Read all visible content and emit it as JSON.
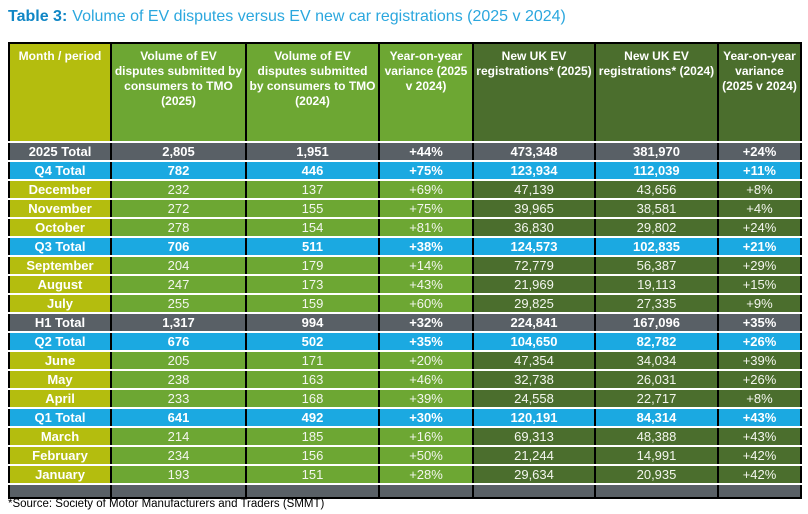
{
  "title": {
    "prefix": "Table 3:",
    "rest": "Volume of EV disputes versus EV new car registrations (2025 v 2024)"
  },
  "colors": {
    "title_prefix": "#0f86c5",
    "title_rest": "#2ba7de",
    "yellow_green": "#b4bd0e",
    "bright_green": "#6da733",
    "dark_green": "#4b6e2d",
    "cyan": "#1ba9e1",
    "gray": "#596066",
    "row_separator": "#ffffff",
    "grid_border": "#000000"
  },
  "table": {
    "columns": [
      {
        "key": "month-period",
        "label": "Month / period",
        "tone": "yellow"
      },
      {
        "key": "disputes-2025",
        "label": "Volume of EV disputes submitted by consumers to TMO (2025)",
        "tone": "bright"
      },
      {
        "key": "disputes-2024",
        "label": "Volume of EV disputes submitted by consumers to TMO (2024)",
        "tone": "bright"
      },
      {
        "key": "disputes-variance",
        "label": "Year-on-year variance (2025 v 2024)",
        "tone": "bright"
      },
      {
        "key": "registrations-2025",
        "label": "New UK EV registrations* (2025)",
        "tone": "dark"
      },
      {
        "key": "registrations-2024",
        "label": "New UK EV registrations* (2024)",
        "tone": "dark"
      },
      {
        "key": "registrations-variance",
        "label": "Year-on-year variance (2025 v 2024)",
        "tone": "dark"
      }
    ],
    "rows": [
      {
        "label": "2025 Total",
        "type": "grand",
        "values": [
          "2,805",
          "1,951",
          "+44%",
          "473,348",
          "381,970",
          "+24%"
        ]
      },
      {
        "label": "Q4 Total",
        "type": "quarter",
        "values": [
          "782",
          "446",
          "+75%",
          "123,934",
          "112,039",
          "+11%"
        ]
      },
      {
        "label": "December",
        "type": "month",
        "values": [
          "232",
          "137",
          "+69%",
          "47,139",
          "43,656",
          "+8%"
        ]
      },
      {
        "label": "November",
        "type": "month",
        "values": [
          "272",
          "155",
          "+75%",
          "39,965",
          "38,581",
          "+4%"
        ]
      },
      {
        "label": "October",
        "type": "month",
        "values": [
          "278",
          "154",
          "+81%",
          "36,830",
          "29,802",
          "+24%"
        ]
      },
      {
        "label": "Q3 Total",
        "type": "quarter",
        "values": [
          "706",
          "511",
          "+38%",
          "124,573",
          "102,835",
          "+21%"
        ]
      },
      {
        "label": "September",
        "type": "month",
        "values": [
          "204",
          "179",
          "+14%",
          "72,779",
          "56,387",
          "+29%"
        ]
      },
      {
        "label": "August",
        "type": "month",
        "values": [
          "247",
          "173",
          "+43%",
          "21,969",
          "19,113",
          "+15%"
        ]
      },
      {
        "label": "July",
        "type": "month",
        "values": [
          "255",
          "159",
          "+60%",
          "29,825",
          "27,335",
          "+9%"
        ]
      },
      {
        "label": "H1 Total",
        "type": "grand",
        "values": [
          "1,317",
          "994",
          "+32%",
          "224,841",
          "167,096",
          "+35%"
        ]
      },
      {
        "label": "Q2 Total",
        "type": "quarter",
        "values": [
          "676",
          "502",
          "+35%",
          "104,650",
          "82,782",
          "+26%"
        ]
      },
      {
        "label": "June",
        "type": "month",
        "values": [
          "205",
          "171",
          "+20%",
          "47,354",
          "34,034",
          "+39%"
        ]
      },
      {
        "label": "May",
        "type": "month",
        "values": [
          "238",
          "163",
          "+46%",
          "32,738",
          "26,031",
          "+26%"
        ]
      },
      {
        "label": "April",
        "type": "month",
        "values": [
          "233",
          "168",
          "+39%",
          "24,558",
          "22,717",
          "+8%"
        ]
      },
      {
        "label": "Q1 Total",
        "type": "quarter",
        "values": [
          "641",
          "492",
          "+30%",
          "120,191",
          "84,314",
          "+43%"
        ]
      },
      {
        "label": "March",
        "type": "month",
        "values": [
          "214",
          "185",
          "+16%",
          "69,313",
          "48,388",
          "+43%"
        ]
      },
      {
        "label": "February",
        "type": "month",
        "values": [
          "234",
          "156",
          "+50%",
          "21,244",
          "14,991",
          "+42%"
        ]
      },
      {
        "label": "January",
        "type": "month",
        "values": [
          "193",
          "151",
          "+28%",
          "29,634",
          "20,935",
          "+42%"
        ]
      },
      {
        "label": "",
        "type": "empty",
        "values": [
          "",
          "",
          "",
          "",
          "",
          ""
        ]
      }
    ]
  },
  "footer": "*Source: Society of Motor Manufacturers and Traders (SMMT)"
}
